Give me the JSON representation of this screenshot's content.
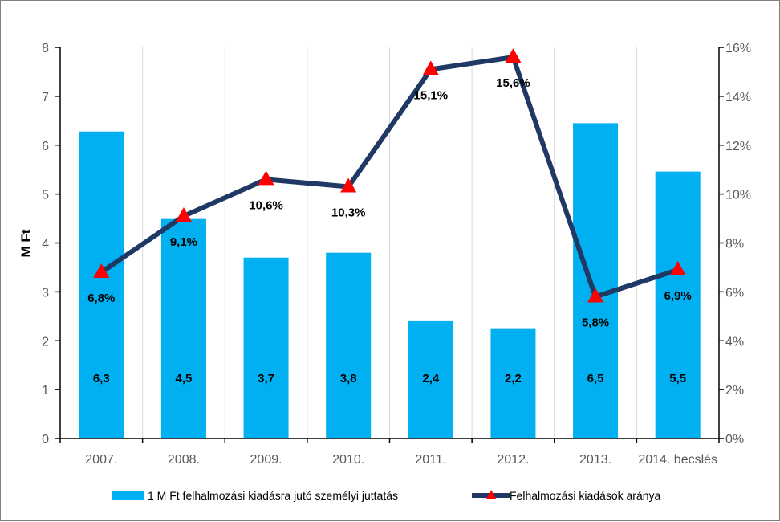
{
  "chart_data": {
    "type": "bar",
    "categories": [
      "2007.",
      "2008.",
      "2009.",
      "2010.",
      "2011.",
      "2012.",
      "2013.",
      "2014. becslés"
    ],
    "ylabel": "M Ft",
    "ylim": [
      0,
      8
    ],
    "y_ticks": [
      "0",
      "1",
      "2",
      "3",
      "4",
      "5",
      "6",
      "7",
      "8"
    ],
    "y2lim": [
      0,
      16
    ],
    "y2_ticks": [
      "0%",
      "2%",
      "4%",
      "6%",
      "8%",
      "10%",
      "12%",
      "14%",
      "16%"
    ],
    "grid": "vertical",
    "legend_position": "bottom",
    "series": [
      {
        "name": "1 M Ft felhalmozási kiadásra jutó személyi juttatás",
        "type": "bar",
        "axis": "left",
        "values": [
          6.28,
          4.49,
          3.7,
          3.8,
          2.4,
          2.24,
          6.45,
          5.46
        ],
        "labels": [
          "6,3",
          "4,5",
          "3,7",
          "3,8",
          "2,4",
          "2,2",
          "6,5",
          "5,5"
        ],
        "color": "#00b0f0"
      },
      {
        "name": "Felhalmozási kiadások aránya",
        "type": "line",
        "axis": "right",
        "values": [
          6.8,
          9.1,
          10.6,
          10.3,
          15.1,
          15.6,
          5.8,
          6.9
        ],
        "labels": [
          "6,8%",
          "9,1%",
          "10,6%",
          "10,3%",
          "15,1%",
          "15,6%",
          "5,8%",
          "6,9%"
        ],
        "color": "#1f3864",
        "marker": "triangle",
        "marker_color": "#ff0000"
      }
    ]
  }
}
